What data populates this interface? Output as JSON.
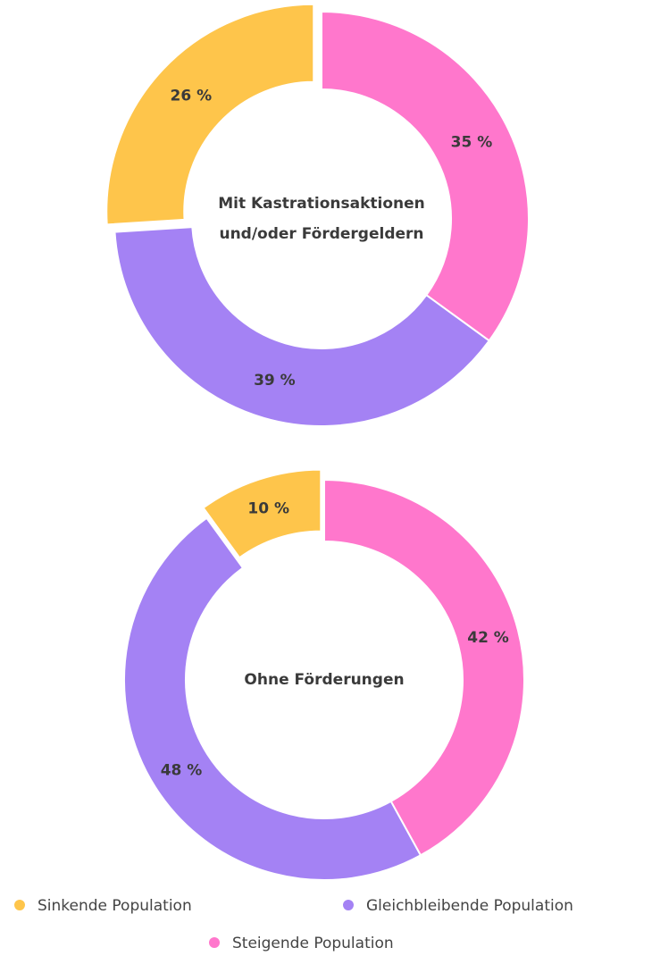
{
  "chart_data": [
    {
      "type": "pie",
      "title": [
        "Mit Kastrationsaktionen",
        "und/oder Fördergeldern"
      ],
      "values": [
        26,
        39,
        35
      ],
      "value_labels": [
        "26 %",
        "39 %",
        "35 %"
      ]
    },
    {
      "type": "pie",
      "title": [
        "Ohne Förderungen"
      ],
      "values": [
        10,
        48,
        42
      ],
      "value_labels": [
        "10 %",
        "48 %",
        "42 %"
      ]
    }
  ],
  "legend": [
    {
      "name": "Sinkende Population",
      "color": "#fec54b"
    },
    {
      "name": "Gleichbleibende Population",
      "color": "#a482f4"
    },
    {
      "name": "Steigende Population",
      "color": "#ff77cc"
    }
  ]
}
